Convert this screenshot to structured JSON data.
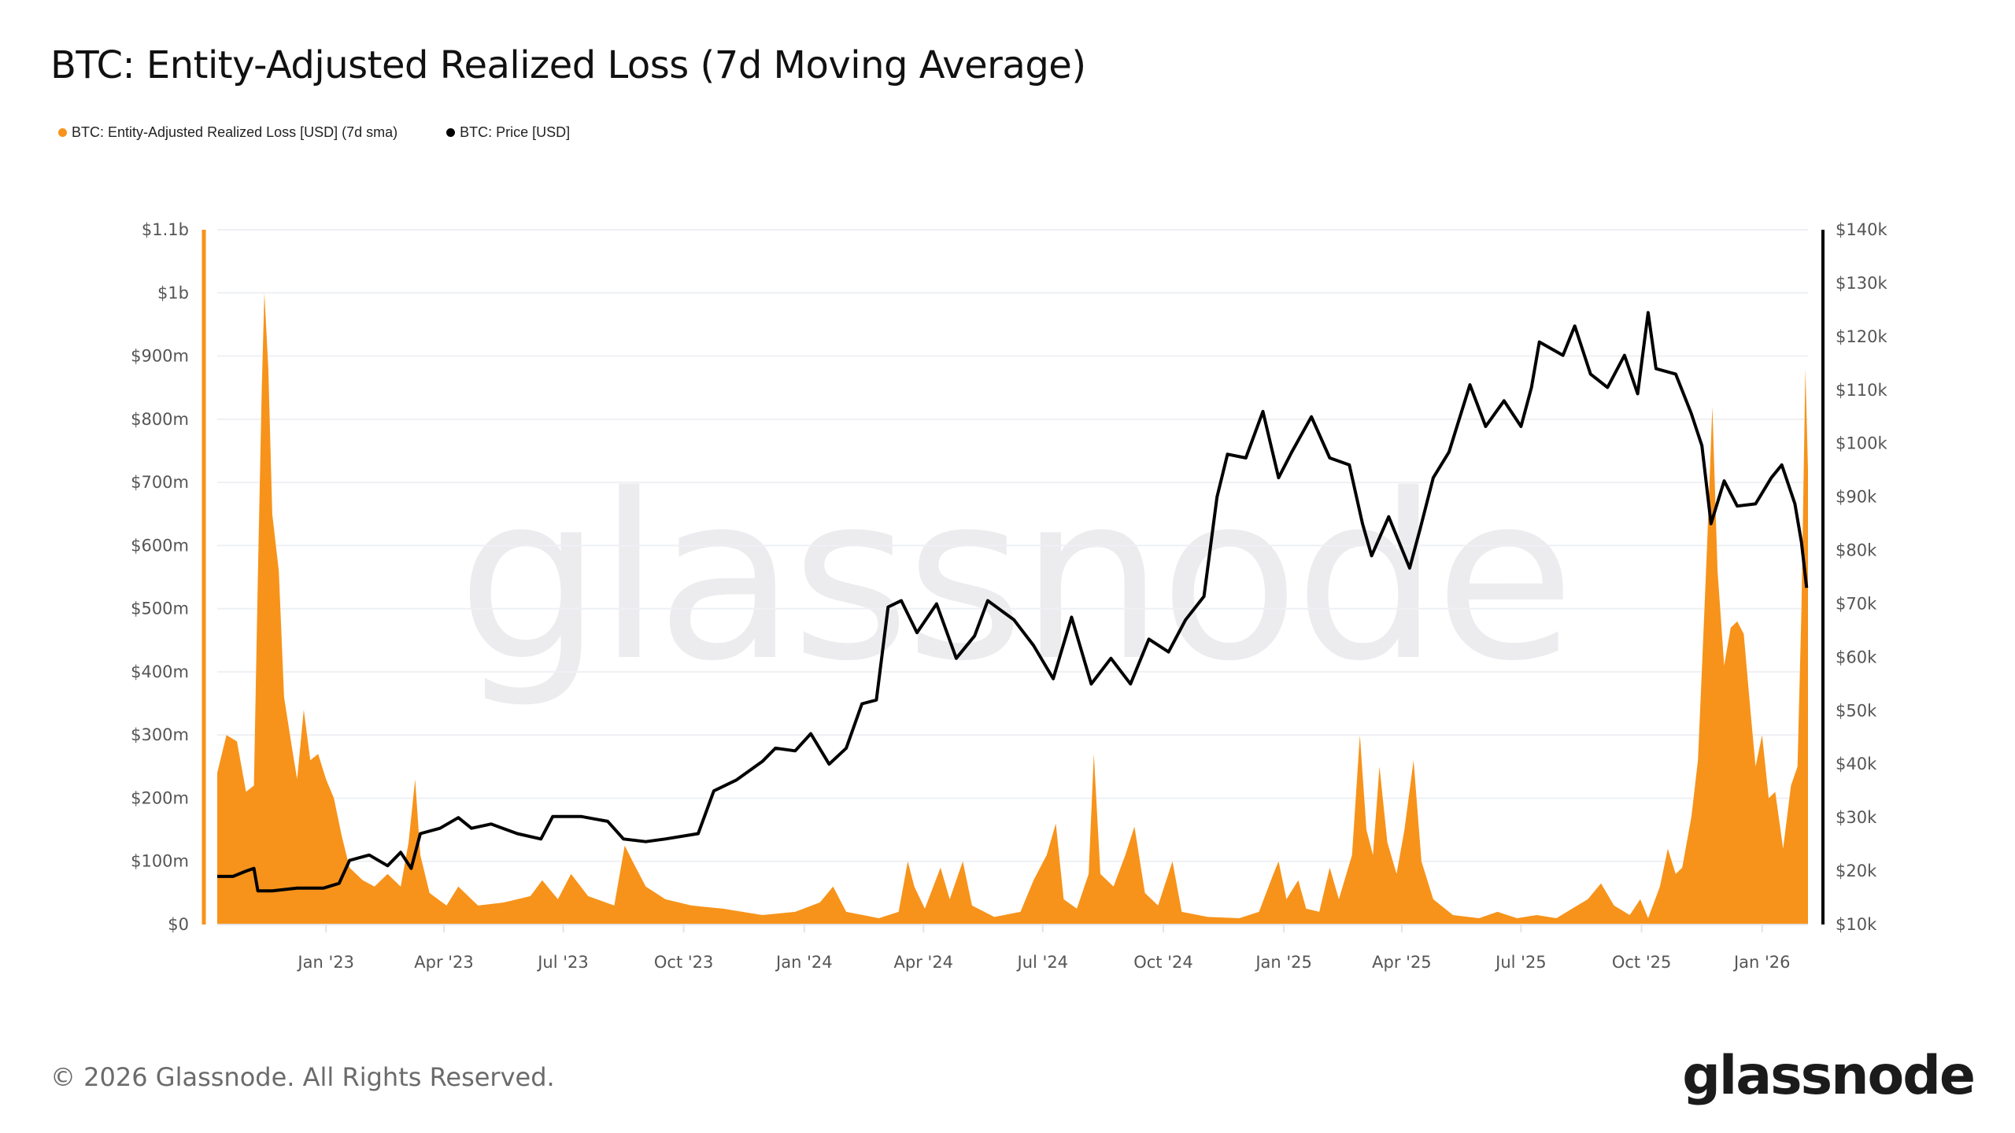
{
  "title": "BTC: Entity-Adjusted Realized Loss (7d Moving Average)",
  "legend": [
    {
      "label": "BTC: Entity-Adjusted Realized Loss [USD] (7d sma)",
      "color": "#f7931a"
    },
    {
      "label": "BTC: Price [USD]",
      "color": "#000000"
    }
  ],
  "watermark": "glassnode",
  "footer": {
    "copyright": "© 2026 Glassnode. All Rights Reserved.",
    "logo": "glassnode"
  },
  "chart_data": {
    "type": "area+line",
    "title": "BTC: Entity-Adjusted Realized Loss (7d Moving Average)",
    "xlim": [
      "2022-10-10",
      "2026-02-05"
    ],
    "x_ticks": [
      {
        "label": "Jan '23",
        "date": "2023-01-01"
      },
      {
        "label": "Apr '23",
        "date": "2023-04-01"
      },
      {
        "label": "Jul '23",
        "date": "2023-07-01"
      },
      {
        "label": "Oct '23",
        "date": "2023-10-01"
      },
      {
        "label": "Jan '24",
        "date": "2024-01-01"
      },
      {
        "label": "Apr '24",
        "date": "2024-04-01"
      },
      {
        "label": "Jul '24",
        "date": "2024-07-01"
      },
      {
        "label": "Oct '24",
        "date": "2024-10-01"
      },
      {
        "label": "Jan '25",
        "date": "2025-01-01"
      },
      {
        "label": "Apr '25",
        "date": "2025-04-01"
      },
      {
        "label": "Jul '25",
        "date": "2025-07-01"
      },
      {
        "label": "Oct '25",
        "date": "2025-10-01"
      },
      {
        "label": "Jan '26",
        "date": "2026-01-01"
      }
    ],
    "y_left": {
      "unit": "USD millions",
      "ylim": [
        0,
        1100
      ],
      "ticks": [
        {
          "v": 0,
          "label": "$0"
        },
        {
          "v": 100,
          "label": "$100m"
        },
        {
          "v": 200,
          "label": "$200m"
        },
        {
          "v": 300,
          "label": "$300m"
        },
        {
          "v": 400,
          "label": "$400m"
        },
        {
          "v": 500,
          "label": "$500m"
        },
        {
          "v": 600,
          "label": "$600m"
        },
        {
          "v": 700,
          "label": "$700m"
        },
        {
          "v": 800,
          "label": "$800m"
        },
        {
          "v": 900,
          "label": "$900m"
        },
        {
          "v": 1000,
          "label": "$1b"
        },
        {
          "v": 1100,
          "label": "$1.1b"
        }
      ],
      "color": "#f7931a"
    },
    "y_right": {
      "unit": "USD thousands",
      "ylim": [
        10,
        140
      ],
      "ticks": [
        {
          "v": 10,
          "label": "$10k"
        },
        {
          "v": 20,
          "label": "$20k"
        },
        {
          "v": 30,
          "label": "$30k"
        },
        {
          "v": 40,
          "label": "$40k"
        },
        {
          "v": 50,
          "label": "$50k"
        },
        {
          "v": 60,
          "label": "$60k"
        },
        {
          "v": 70,
          "label": "$70k"
        },
        {
          "v": 80,
          "label": "$80k"
        },
        {
          "v": 90,
          "label": "$90k"
        },
        {
          "v": 100,
          "label": "$100k"
        },
        {
          "v": 110,
          "label": "$110k"
        },
        {
          "v": 120,
          "label": "$120k"
        },
        {
          "v": 130,
          "label": "$130k"
        },
        {
          "v": 140,
          "label": "$140k"
        }
      ],
      "color": "#000000"
    },
    "grid": true,
    "legend_position": "top-left",
    "series": [
      {
        "name": "BTC: Entity-Adjusted Realized Loss [USD] (7d sma)",
        "type": "area",
        "axis": "left",
        "color": "#f7931a",
        "points": [
          [
            "2022-10-10",
            240
          ],
          [
            "2022-10-17",
            300
          ],
          [
            "2022-10-25",
            290
          ],
          [
            "2022-11-01",
            210
          ],
          [
            "2022-11-07",
            220
          ],
          [
            "2022-11-10",
            550
          ],
          [
            "2022-11-13",
            850
          ],
          [
            "2022-11-15",
            1000
          ],
          [
            "2022-11-18",
            880
          ],
          [
            "2022-11-21",
            650
          ],
          [
            "2022-11-26",
            560
          ],
          [
            "2022-11-30",
            360
          ],
          [
            "2022-12-06",
            280
          ],
          [
            "2022-12-10",
            230
          ],
          [
            "2022-12-15",
            340
          ],
          [
            "2022-12-20",
            260
          ],
          [
            "2022-12-26",
            270
          ],
          [
            "2023-01-01",
            230
          ],
          [
            "2023-01-07",
            200
          ],
          [
            "2023-01-13",
            140
          ],
          [
            "2023-01-19",
            90
          ],
          [
            "2023-01-29",
            70
          ],
          [
            "2023-02-07",
            60
          ],
          [
            "2023-02-17",
            80
          ],
          [
            "2023-02-27",
            60
          ],
          [
            "2023-03-05",
            130
          ],
          [
            "2023-03-10",
            230
          ],
          [
            "2023-03-14",
            110
          ],
          [
            "2023-03-21",
            50
          ],
          [
            "2023-04-03",
            30
          ],
          [
            "2023-04-12",
            60
          ],
          [
            "2023-04-27",
            30
          ],
          [
            "2023-05-17",
            35
          ],
          [
            "2023-06-06",
            45
          ],
          [
            "2023-06-15",
            70
          ],
          [
            "2023-06-27",
            40
          ],
          [
            "2023-07-07",
            80
          ],
          [
            "2023-07-20",
            45
          ],
          [
            "2023-08-09",
            30
          ],
          [
            "2023-08-17",
            125
          ],
          [
            "2023-08-23",
            100
          ],
          [
            "2023-09-02",
            60
          ],
          [
            "2023-09-17",
            40
          ],
          [
            "2023-10-07",
            30
          ],
          [
            "2023-10-31",
            25
          ],
          [
            "2023-11-30",
            15
          ],
          [
            "2023-12-25",
            20
          ],
          [
            "2024-01-13",
            35
          ],
          [
            "2024-01-23",
            60
          ],
          [
            "2024-02-02",
            20
          ],
          [
            "2024-02-27",
            10
          ],
          [
            "2024-03-13",
            20
          ],
          [
            "2024-03-20",
            100
          ],
          [
            "2024-03-25",
            60
          ],
          [
            "2024-04-02",
            25
          ],
          [
            "2024-04-14",
            90
          ],
          [
            "2024-04-21",
            40
          ],
          [
            "2024-05-01",
            100
          ],
          [
            "2024-05-08",
            30
          ],
          [
            "2024-05-25",
            12
          ],
          [
            "2024-06-14",
            20
          ],
          [
            "2024-06-24",
            70
          ],
          [
            "2024-07-04",
            110
          ],
          [
            "2024-07-11",
            160
          ],
          [
            "2024-07-17",
            40
          ],
          [
            "2024-07-27",
            25
          ],
          [
            "2024-08-05",
            80
          ],
          [
            "2024-08-09",
            270
          ],
          [
            "2024-08-14",
            80
          ],
          [
            "2024-08-24",
            60
          ],
          [
            "2024-09-02",
            110
          ],
          [
            "2024-09-09",
            155
          ],
          [
            "2024-09-17",
            50
          ],
          [
            "2024-09-27",
            30
          ],
          [
            "2024-10-08",
            100
          ],
          [
            "2024-10-15",
            20
          ],
          [
            "2024-11-04",
            12
          ],
          [
            "2024-11-28",
            10
          ],
          [
            "2024-12-13",
            20
          ],
          [
            "2024-12-24",
            80
          ],
          [
            "2024-12-28",
            100
          ],
          [
            "2025-01-03",
            40
          ],
          [
            "2025-01-12",
            70
          ],
          [
            "2025-01-18",
            25
          ],
          [
            "2025-01-28",
            20
          ],
          [
            "2025-02-05",
            90
          ],
          [
            "2025-02-12",
            40
          ],
          [
            "2025-02-22",
            110
          ],
          [
            "2025-02-28",
            300
          ],
          [
            "2025-03-05",
            150
          ],
          [
            "2025-03-10",
            110
          ],
          [
            "2025-03-15",
            250
          ],
          [
            "2025-03-21",
            130
          ],
          [
            "2025-03-28",
            80
          ],
          [
            "2025-04-03",
            150
          ],
          [
            "2025-04-10",
            260
          ],
          [
            "2025-04-16",
            100
          ],
          [
            "2025-04-25",
            40
          ],
          [
            "2025-05-10",
            15
          ],
          [
            "2025-05-30",
            10
          ],
          [
            "2025-06-13",
            20
          ],
          [
            "2025-06-28",
            10
          ],
          [
            "2025-07-13",
            15
          ],
          [
            "2025-07-28",
            10
          ],
          [
            "2025-08-09",
            25
          ],
          [
            "2025-08-21",
            40
          ],
          [
            "2025-08-31",
            65
          ],
          [
            "2025-09-10",
            30
          ],
          [
            "2025-09-22",
            15
          ],
          [
            "2025-09-30",
            40
          ],
          [
            "2025-10-06",
            10
          ],
          [
            "2025-10-15",
            60
          ],
          [
            "2025-10-21",
            120
          ],
          [
            "2025-10-27",
            80
          ],
          [
            "2025-11-01",
            90
          ],
          [
            "2025-11-08",
            170
          ],
          [
            "2025-11-13",
            260
          ],
          [
            "2025-11-17",
            450
          ],
          [
            "2025-11-20",
            600
          ],
          [
            "2025-11-24",
            820
          ],
          [
            "2025-11-28",
            560
          ],
          [
            "2025-12-03",
            410
          ],
          [
            "2025-12-08",
            470
          ],
          [
            "2025-12-13",
            480
          ],
          [
            "2025-12-18",
            460
          ],
          [
            "2025-12-23",
            340
          ],
          [
            "2025-12-27",
            250
          ],
          [
            "2026-01-01",
            300
          ],
          [
            "2026-01-06",
            200
          ],
          [
            "2026-01-11",
            210
          ],
          [
            "2026-01-17",
            120
          ],
          [
            "2026-01-23",
            220
          ],
          [
            "2026-01-28",
            250
          ],
          [
            "2026-01-31",
            500
          ],
          [
            "2026-02-03",
            880
          ],
          [
            "2026-02-05",
            720
          ]
        ]
      },
      {
        "name": "BTC: Price [USD]",
        "type": "line",
        "axis": "right",
        "color": "#000000",
        "points": [
          [
            "2022-10-10",
            19
          ],
          [
            "2022-10-22",
            19
          ],
          [
            "2022-11-01",
            20
          ],
          [
            "2022-11-07",
            20.5
          ],
          [
            "2022-11-10",
            16.3
          ],
          [
            "2022-11-21",
            16.3
          ],
          [
            "2022-12-10",
            16.8
          ],
          [
            "2022-12-30",
            16.8
          ],
          [
            "2023-01-11",
            17.7
          ],
          [
            "2023-01-19",
            22
          ],
          [
            "2023-02-03",
            23
          ],
          [
            "2023-02-17",
            21
          ],
          [
            "2023-02-27",
            23.5
          ],
          [
            "2023-03-07",
            20.5
          ],
          [
            "2023-03-14",
            27
          ],
          [
            "2023-03-29",
            28
          ],
          [
            "2023-04-12",
            30
          ],
          [
            "2023-04-22",
            28
          ],
          [
            "2023-05-07",
            28.8
          ],
          [
            "2023-05-27",
            27
          ],
          [
            "2023-06-14",
            26
          ],
          [
            "2023-06-23",
            30.2
          ],
          [
            "2023-07-15",
            30.2
          ],
          [
            "2023-08-04",
            29.3
          ],
          [
            "2023-08-16",
            26
          ],
          [
            "2023-09-02",
            25.5
          ],
          [
            "2023-09-17",
            26
          ],
          [
            "2023-10-12",
            27
          ],
          [
            "2023-10-24",
            35
          ],
          [
            "2023-11-10",
            37
          ],
          [
            "2023-11-30",
            40.5
          ],
          [
            "2023-12-10",
            43
          ],
          [
            "2023-12-25",
            42.5
          ],
          [
            "2024-01-06",
            45.7
          ],
          [
            "2024-01-20",
            40
          ],
          [
            "2024-02-02",
            43
          ],
          [
            "2024-02-14",
            51.3
          ],
          [
            "2024-02-25",
            52
          ],
          [
            "2024-03-05",
            69.4
          ],
          [
            "2024-03-15",
            70.6
          ],
          [
            "2024-03-27",
            64.6
          ],
          [
            "2024-04-11",
            70
          ],
          [
            "2024-04-26",
            59.8
          ],
          [
            "2024-05-10",
            64
          ],
          [
            "2024-05-20",
            70.6
          ],
          [
            "2024-06-09",
            67
          ],
          [
            "2024-06-24",
            62.2
          ],
          [
            "2024-07-09",
            56
          ],
          [
            "2024-07-23",
            67.5
          ],
          [
            "2024-08-07",
            55
          ],
          [
            "2024-08-22",
            59.8
          ],
          [
            "2024-09-06",
            55
          ],
          [
            "2024-09-20",
            63.4
          ],
          [
            "2024-10-05",
            61
          ],
          [
            "2024-10-18",
            67
          ],
          [
            "2024-11-01",
            71.4
          ],
          [
            "2024-11-11",
            90
          ],
          [
            "2024-11-19",
            98
          ],
          [
            "2024-12-03",
            97.3
          ],
          [
            "2024-12-16",
            106
          ],
          [
            "2024-12-28",
            93.6
          ],
          [
            "2025-01-07",
            98.4
          ],
          [
            "2025-01-22",
            105
          ],
          [
            "2025-02-05",
            97.3
          ],
          [
            "2025-02-20",
            96
          ],
          [
            "2025-03-02",
            85
          ],
          [
            "2025-03-09",
            79
          ],
          [
            "2025-03-22",
            86.3
          ],
          [
            "2025-04-07",
            76.7
          ],
          [
            "2025-04-15",
            84
          ],
          [
            "2025-04-25",
            93.6
          ],
          [
            "2025-05-07",
            98.4
          ],
          [
            "2025-05-23",
            111
          ],
          [
            "2025-06-04",
            103.2
          ],
          [
            "2025-06-18",
            108
          ],
          [
            "2025-07-01",
            103.2
          ],
          [
            "2025-07-09",
            110.5
          ],
          [
            "2025-07-15",
            119
          ],
          [
            "2025-08-02",
            116.5
          ],
          [
            "2025-08-11",
            122
          ],
          [
            "2025-08-23",
            113
          ],
          [
            "2025-09-05",
            110.5
          ],
          [
            "2025-09-18",
            116.5
          ],
          [
            "2025-09-28",
            109.3
          ],
          [
            "2025-10-06",
            124.5
          ],
          [
            "2025-10-12",
            114
          ],
          [
            "2025-10-27",
            113
          ],
          [
            "2025-11-08",
            105.6
          ],
          [
            "2025-11-16",
            99.6
          ],
          [
            "2025-11-23",
            85
          ],
          [
            "2025-12-03",
            93
          ],
          [
            "2025-12-13",
            88.3
          ],
          [
            "2025-12-27",
            88.7
          ],
          [
            "2026-01-08",
            93.6
          ],
          [
            "2026-01-16",
            96
          ],
          [
            "2026-01-26",
            88.7
          ],
          [
            "2026-01-31",
            81.5
          ],
          [
            "2026-02-04",
            73
          ]
        ]
      }
    ]
  }
}
